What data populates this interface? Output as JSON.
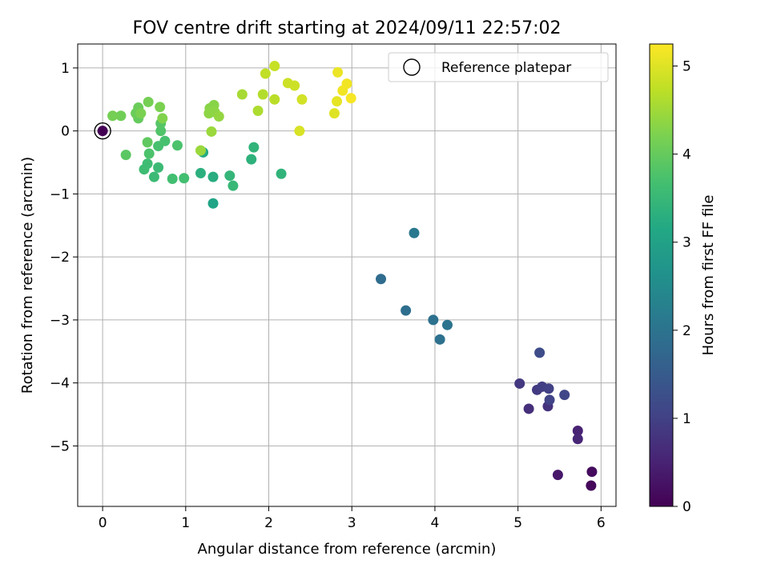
{
  "chart_data": {
    "type": "scatter",
    "title": "FOV centre drift starting at 2024/09/11 22:57:02",
    "xlabel": "Angular distance from reference (arcmin)",
    "ylabel": "Rotation from reference (arcmin)",
    "xlim": [
      -0.3,
      6.18
    ],
    "ylim": [
      -5.96,
      1.38
    ],
    "xticks": [
      "0",
      "1",
      "2",
      "3",
      "4",
      "5",
      "6"
    ],
    "xtick_values": [
      0,
      1,
      2,
      3,
      4,
      5,
      6
    ],
    "yticks": [
      "1",
      "0",
      "−1",
      "−2",
      "−3",
      "−4",
      "−5"
    ],
    "ytick_values": [
      1,
      0,
      -1,
      -2,
      -3,
      -4,
      -5
    ],
    "grid": true,
    "legend": {
      "position": "top-right",
      "entries": [
        "Reference platepar"
      ]
    },
    "colorbar": {
      "label": "Hours from first FF file",
      "colormap": "viridis",
      "range": [
        0,
        5.25
      ],
      "ticks": [
        "0",
        "1",
        "2",
        "3",
        "4",
        "5"
      ],
      "tick_values": [
        0,
        1,
        2,
        3,
        4,
        5
      ]
    },
    "reference_point": {
      "x": 0,
      "y": 0,
      "hours": 0.0
    },
    "points": [
      {
        "x": 5.88,
        "y": -5.63,
        "h": 0.1
      },
      {
        "x": 5.89,
        "y": -5.41,
        "h": 0.15
      },
      {
        "x": 5.48,
        "y": -5.46,
        "h": 0.35
      },
      {
        "x": 5.72,
        "y": -4.76,
        "h": 0.5
      },
      {
        "x": 5.72,
        "y": -4.89,
        "h": 0.55
      },
      {
        "x": 5.13,
        "y": -4.41,
        "h": 0.7
      },
      {
        "x": 5.36,
        "y": -4.37,
        "h": 0.75
      },
      {
        "x": 5.02,
        "y": -4.01,
        "h": 0.85
      },
      {
        "x": 5.23,
        "y": -4.11,
        "h": 0.9
      },
      {
        "x": 5.29,
        "y": -4.06,
        "h": 0.95
      },
      {
        "x": 5.37,
        "y": -4.09,
        "h": 1.0
      },
      {
        "x": 5.38,
        "y": -4.27,
        "h": 1.05
      },
      {
        "x": 5.56,
        "y": -4.19,
        "h": 1.1
      },
      {
        "x": 5.26,
        "y": -3.52,
        "h": 1.2
      },
      {
        "x": 3.35,
        "y": -2.35,
        "h": 1.85
      },
      {
        "x": 3.65,
        "y": -2.85,
        "h": 1.9
      },
      {
        "x": 3.98,
        "y": -3.0,
        "h": 1.95
      },
      {
        "x": 4.06,
        "y": -3.31,
        "h": 1.95
      },
      {
        "x": 4.15,
        "y": -3.08,
        "h": 2.0
      },
      {
        "x": 3.75,
        "y": -1.62,
        "h": 2.1
      },
      {
        "x": 1.33,
        "y": -1.15,
        "h": 3.05
      },
      {
        "x": 1.21,
        "y": -0.34,
        "h": 3.2
      },
      {
        "x": 1.33,
        "y": -0.73,
        "h": 3.25
      },
      {
        "x": 1.18,
        "y": -0.67,
        "h": 3.3
      },
      {
        "x": 1.79,
        "y": -0.45,
        "h": 3.35
      },
      {
        "x": 1.82,
        "y": -0.26,
        "h": 3.4
      },
      {
        "x": 2.15,
        "y": -0.68,
        "h": 3.4
      },
      {
        "x": 1.53,
        "y": -0.71,
        "h": 3.45
      },
      {
        "x": 1.57,
        "y": -0.87,
        "h": 3.5
      },
      {
        "x": 0.62,
        "y": -0.73,
        "h": 3.55
      },
      {
        "x": 0.67,
        "y": -0.58,
        "h": 3.55
      },
      {
        "x": 0.54,
        "y": -0.52,
        "h": 3.6
      },
      {
        "x": 0.5,
        "y": -0.61,
        "h": 3.6
      },
      {
        "x": 0.84,
        "y": -0.76,
        "h": 3.65
      },
      {
        "x": 0.98,
        "y": -0.75,
        "h": 3.65
      },
      {
        "x": 0.67,
        "y": -0.24,
        "h": 3.7
      },
      {
        "x": 0.75,
        "y": -0.16,
        "h": 3.7
      },
      {
        "x": 0.9,
        "y": -0.23,
        "h": 3.75
      },
      {
        "x": 0.56,
        "y": -0.36,
        "h": 3.75
      },
      {
        "x": 0.7,
        "y": 0.0,
        "h": 3.8
      },
      {
        "x": 0.7,
        "y": 0.12,
        "h": 3.85
      },
      {
        "x": 0.28,
        "y": -0.38,
        "h": 3.9
      },
      {
        "x": 0.54,
        "y": -0.18,
        "h": 3.95
      },
      {
        "x": 0.43,
        "y": 0.2,
        "h": 4.0
      },
      {
        "x": 0.43,
        "y": 0.37,
        "h": 4.05
      },
      {
        "x": 0.4,
        "y": 0.28,
        "h": 4.05
      },
      {
        "x": 0.22,
        "y": 0.24,
        "h": 4.1
      },
      {
        "x": 0.12,
        "y": 0.24,
        "h": 4.15
      },
      {
        "x": 0.55,
        "y": 0.46,
        "h": 4.15
      },
      {
        "x": 0.46,
        "y": 0.28,
        "h": 4.2
      },
      {
        "x": 0.69,
        "y": 0.38,
        "h": 4.2
      },
      {
        "x": 0.72,
        "y": 0.2,
        "h": 4.25
      },
      {
        "x": 1.29,
        "y": 0.36,
        "h": 4.3
      },
      {
        "x": 1.34,
        "y": 0.41,
        "h": 4.3
      },
      {
        "x": 1.28,
        "y": 0.28,
        "h": 4.35
      },
      {
        "x": 1.35,
        "y": 0.3,
        "h": 4.35
      },
      {
        "x": 1.4,
        "y": 0.23,
        "h": 4.4
      },
      {
        "x": 1.31,
        "y": -0.01,
        "h": 4.45
      },
      {
        "x": 1.18,
        "y": -0.31,
        "h": 4.45
      },
      {
        "x": 1.68,
        "y": 0.58,
        "h": 4.55
      },
      {
        "x": 1.87,
        "y": 0.32,
        "h": 4.6
      },
      {
        "x": 1.93,
        "y": 0.58,
        "h": 4.65
      },
      {
        "x": 2.07,
        "y": 0.5,
        "h": 4.7
      },
      {
        "x": 1.96,
        "y": 0.91,
        "h": 4.75
      },
      {
        "x": 2.07,
        "y": 1.03,
        "h": 4.8
      },
      {
        "x": 2.23,
        "y": 0.76,
        "h": 4.85
      },
      {
        "x": 2.31,
        "y": 0.72,
        "h": 4.85
      },
      {
        "x": 2.4,
        "y": 0.5,
        "h": 4.9
      },
      {
        "x": 2.37,
        "y": 0.0,
        "h": 4.95
      },
      {
        "x": 2.79,
        "y": 0.28,
        "h": 5.0
      },
      {
        "x": 2.82,
        "y": 0.47,
        "h": 5.05
      },
      {
        "x": 2.83,
        "y": 0.93,
        "h": 5.1
      },
      {
        "x": 2.89,
        "y": 0.64,
        "h": 5.15
      },
      {
        "x": 2.94,
        "y": 0.75,
        "h": 5.15
      },
      {
        "x": 2.99,
        "y": 0.52,
        "h": 5.2
      }
    ]
  }
}
